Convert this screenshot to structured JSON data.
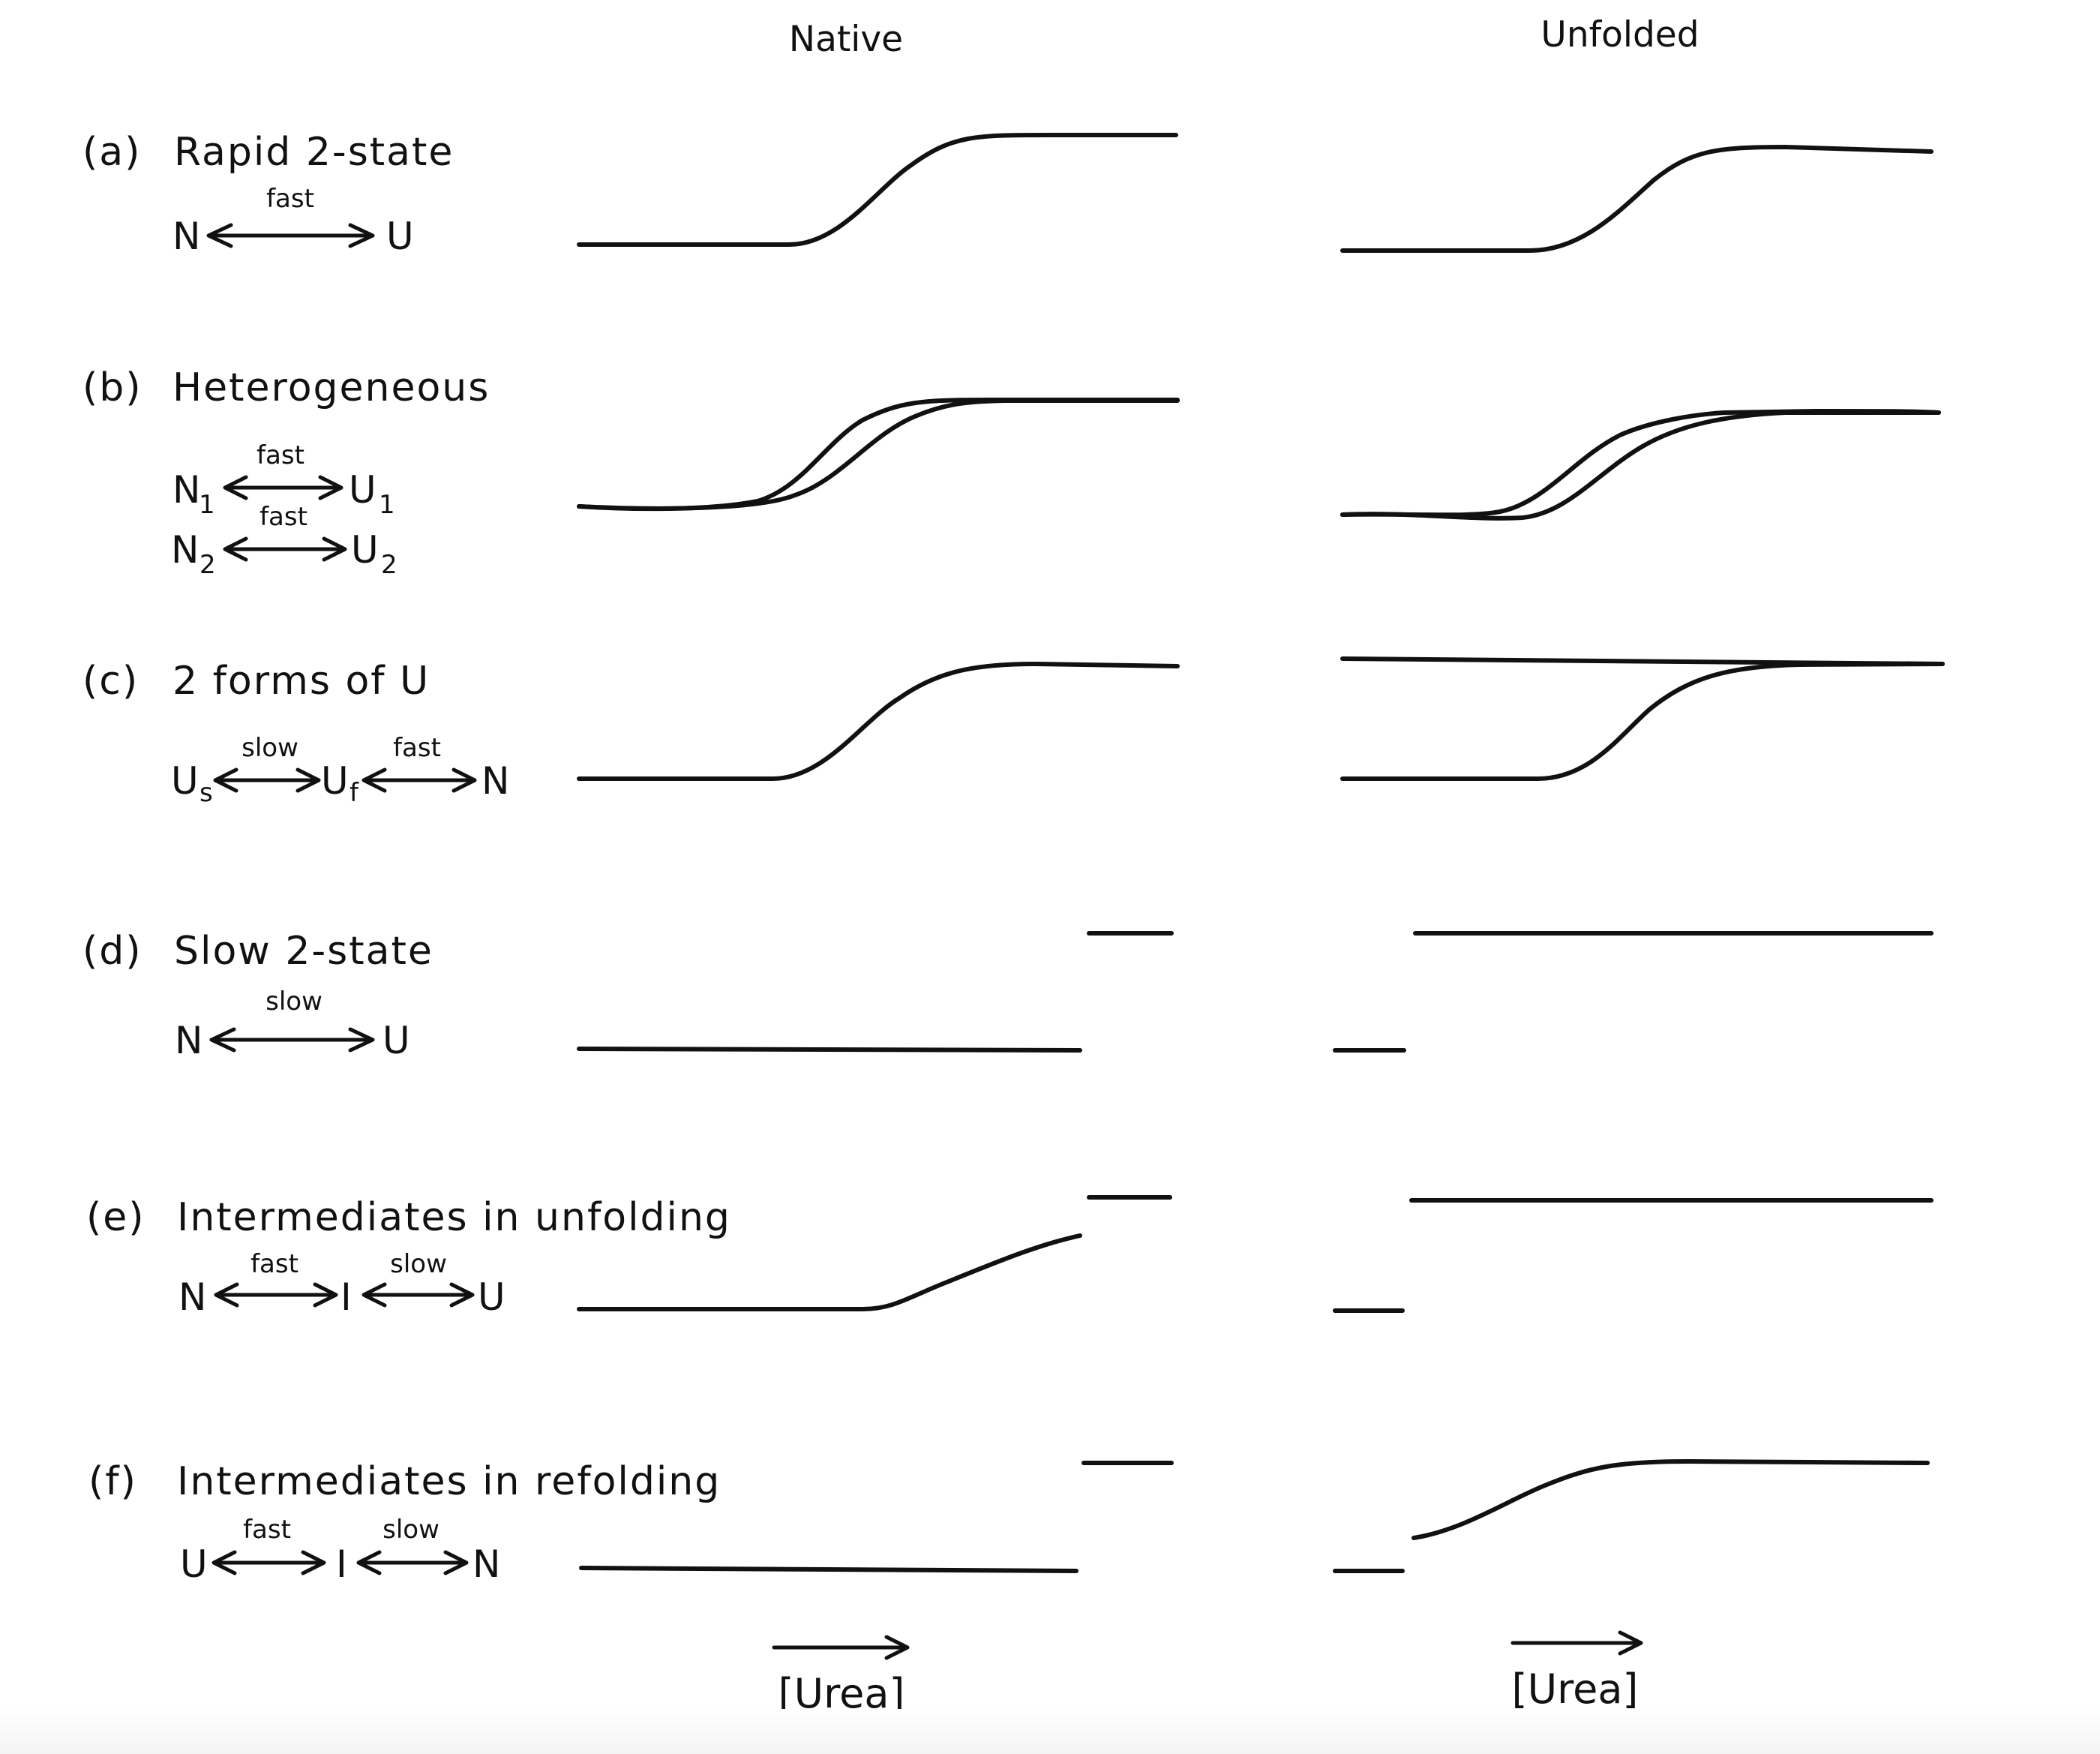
{
  "figure": {
    "columns": {
      "native": "Native",
      "unfolded": "Unfolded"
    },
    "x_axis": {
      "label": "[Urea]"
    },
    "panels": [
      {
        "id": "a",
        "label": "(a)",
        "title": "Rapid 2-state",
        "scheme": [
          {
            "rate": "fast",
            "left": "N",
            "right": "U"
          }
        ]
      },
      {
        "id": "b",
        "label": "(b)",
        "title": "Heterogeneous",
        "scheme": [
          {
            "rate": "fast",
            "left": "N",
            "left_sub": "1",
            "right": "U",
            "right_sub": "1"
          },
          {
            "rate": "fast",
            "left": "N",
            "left_sub": "2",
            "right": "U",
            "right_sub": "2"
          }
        ]
      },
      {
        "id": "c",
        "label": "(c)",
        "title": "2 forms of U",
        "scheme": [
          {
            "species": [
              "U",
              "U",
              "N"
            ],
            "subs": [
              "s",
              "f",
              ""
            ],
            "rates": [
              "slow",
              "fast"
            ]
          }
        ]
      },
      {
        "id": "d",
        "label": "(d)",
        "title": "Slow 2-state",
        "scheme": [
          {
            "rate": "slow",
            "left": "N",
            "right": "U"
          }
        ]
      },
      {
        "id": "e",
        "label": "(e)",
        "title": "Intermediates in unfolding",
        "scheme": [
          {
            "species": [
              "N",
              "I",
              "U"
            ],
            "subs": [
              "",
              "",
              ""
            ],
            "rates": [
              "fast",
              "slow"
            ]
          }
        ]
      },
      {
        "id": "f",
        "label": "(f)",
        "title": "Intermediates in refolding",
        "scheme": [
          {
            "species": [
              "U",
              "I",
              "N"
            ],
            "subs": [
              "",
              "",
              ""
            ],
            "rates": [
              "fast",
              "slow"
            ]
          }
        ]
      }
    ]
  }
}
